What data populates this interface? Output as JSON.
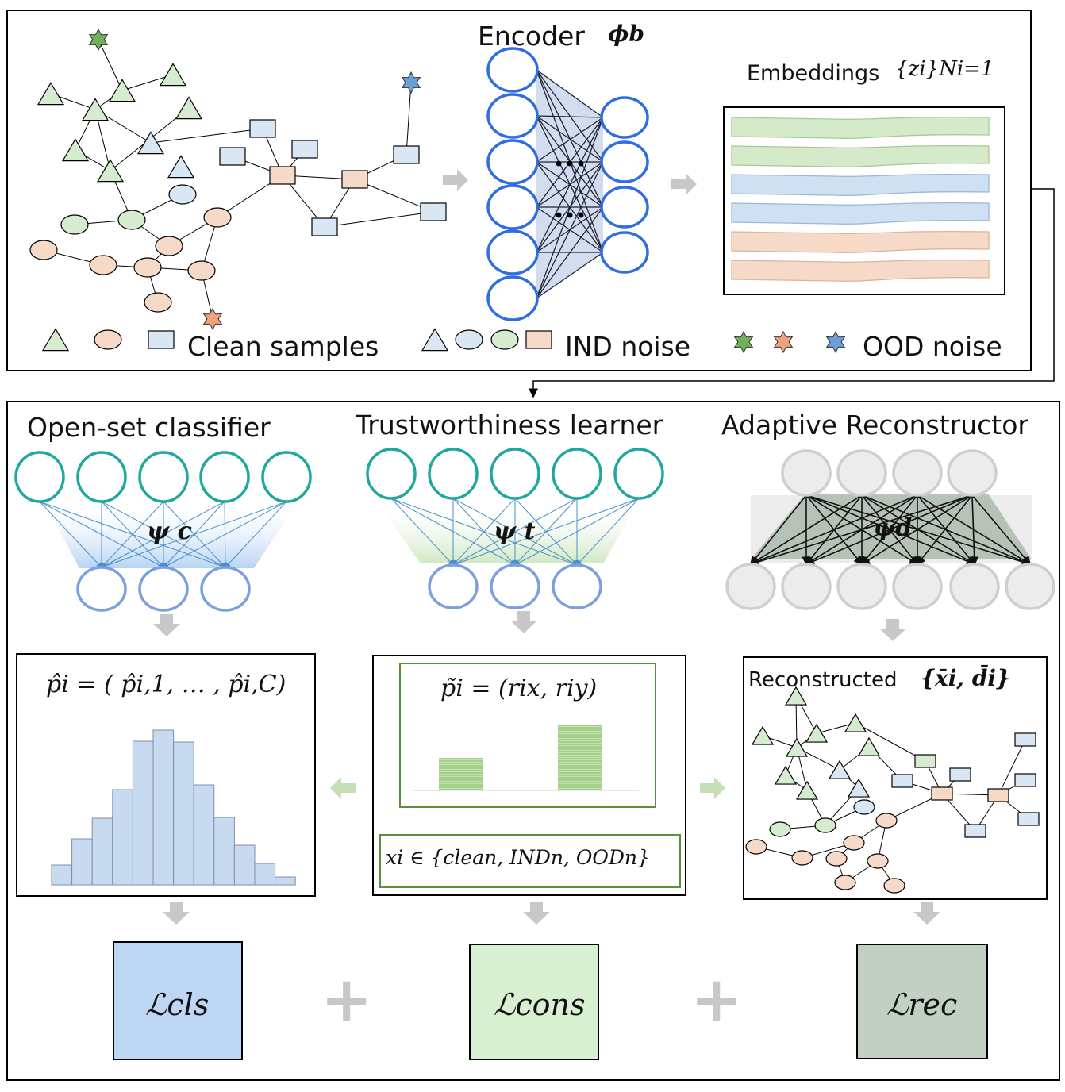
{
  "top": {
    "encoder_label": "Encoder",
    "encoder_symbol": "ϕb",
    "embeddings_label": "Embeddings",
    "embeddings_symbol": "{zi}Ni=1",
    "legend": {
      "clean": "Clean samples",
      "ind": "IND noise",
      "ood": "OOD noise"
    }
  },
  "bottom": {
    "classifier_title": "Open-set classifier",
    "classifier_symbol": "ψ c",
    "learner_title": "Trustworthiness learner",
    "learner_symbol": "ψ t",
    "reconstructor_title": "Adaptive Reconstructor",
    "reconstructor_symbol": "ψd",
    "classifier_formula": "p̂i = ( p̂i,1, … , p̂i,C)",
    "learner_formula": "p̃i = (rix, riy)",
    "sample_formula": "xi ∈ {clean, INDn, OODn}",
    "reconstructed_label": "Reconstructed",
    "reconstructed_symbol": "{x̄i, d̄i}",
    "loss_cls": "ℒcls",
    "loss_cons": "ℒcons",
    "loss_rec": "ℒrec",
    "plus": "+"
  },
  "colors": {
    "green_node": "#d6ecd0",
    "blue_node": "#d9e6f4",
    "orange_node": "#f7d9c8",
    "teal": "#20a89c",
    "node_blue": "#7aa0e0",
    "encoder_blue": "#2f6de0",
    "hist_bar": "#c8daf0",
    "cls_box": "#bcd6f4",
    "cons_box": "#d8f0d2",
    "rec_box": "#c2d0c4",
    "arrow_gray": "#c8c8c8",
    "arrow_green": "#c5dfb8"
  }
}
